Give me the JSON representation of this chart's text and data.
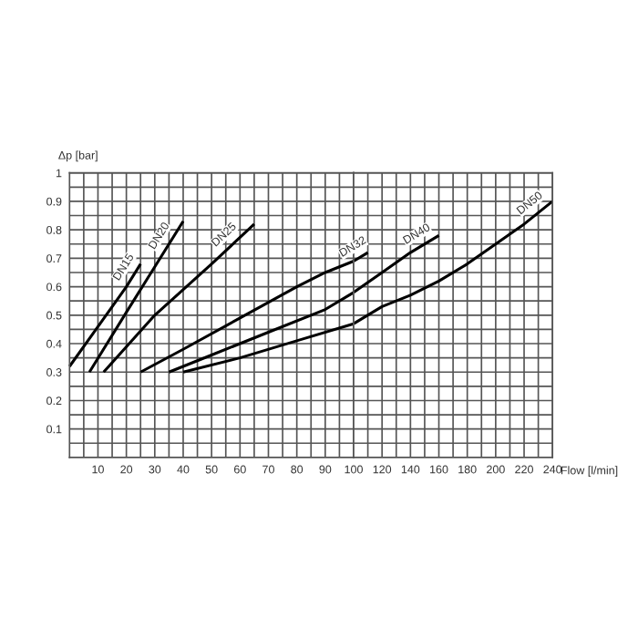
{
  "chart_data": [
    {
      "type": "line",
      "ylabel": "Δp [bar]",
      "xlim": [
        0,
        100
      ],
      "ylim": [
        0,
        1
      ],
      "xticks": [
        10,
        20,
        30,
        40,
        50,
        60,
        70,
        80,
        90,
        100
      ],
      "yticks": [
        0.1,
        0.2,
        0.3,
        0.4,
        0.5,
        0.6,
        0.7,
        0.8,
        0.9,
        1
      ],
      "grid": true,
      "series": [
        {
          "name": "DN15",
          "color": "#000000",
          "x": [
            0,
            10,
            20,
            25
          ],
          "values": [
            0.32,
            0.46,
            0.6,
            0.68
          ]
        },
        {
          "name": "DN20",
          "color": "#000000",
          "x": [
            7,
            20,
            30,
            40
          ],
          "values": [
            0.3,
            0.51,
            0.67,
            0.83
          ]
        },
        {
          "name": "DN25",
          "color": "#000000",
          "x": [
            12,
            30,
            50,
            65
          ],
          "values": [
            0.3,
            0.5,
            0.68,
            0.82
          ]
        },
        {
          "color": "#000000",
          "x": [
            25,
            40,
            60,
            80,
            90,
            100
          ],
          "values": [
            0.3,
            0.38,
            0.49,
            0.6,
            0.65,
            0.69
          ]
        },
        {
          "color": "#000000",
          "x": [
            35,
            50,
            70,
            90,
            100
          ],
          "values": [
            0.3,
            0.36,
            0.44,
            0.52,
            0.58
          ]
        },
        {
          "color": "#000000",
          "x": [
            40,
            60,
            80,
            100
          ],
          "values": [
            0.3,
            0.35,
            0.41,
            0.47
          ]
        }
      ]
    },
    {
      "type": "line",
      "xlabel": "Flow [l/min]",
      "xlim": [
        100,
        240
      ],
      "ylim": [
        0,
        1
      ],
      "xticks": [
        120,
        140,
        160,
        180,
        200,
        220,
        240
      ],
      "yticks": [
        0.1,
        0.2,
        0.3,
        0.4,
        0.5,
        0.6,
        0.7,
        0.8,
        0.9,
        1
      ],
      "grid": true,
      "tick_labels": "x",
      "series": [
        {
          "name": "DN32",
          "color": "#000000",
          "x": [
            100,
            110
          ],
          "values": [
            0.69,
            0.72
          ]
        },
        {
          "name": "DN40",
          "color": "#000000",
          "x": [
            100,
            120,
            140,
            160
          ],
          "values": [
            0.58,
            0.65,
            0.72,
            0.78
          ]
        },
        {
          "name": "DN50",
          "color": "#000000",
          "x": [
            100,
            120,
            140,
            160,
            180,
            200,
            220,
            240
          ],
          "values": [
            0.47,
            0.53,
            0.57,
            0.62,
            0.68,
            0.75,
            0.82,
            0.9
          ]
        }
      ]
    }
  ]
}
